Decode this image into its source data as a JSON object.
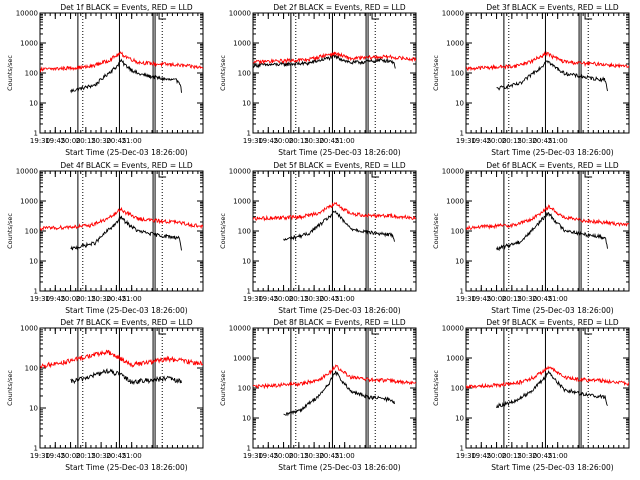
{
  "figure": {
    "background": "#ffffff",
    "axis_color": "#000000",
    "events_color": "#000000",
    "lld_color": "#ff0000"
  },
  "chart_data": [
    {
      "type": "line",
      "title": "Det 1f BLACK = Events, RED = LLD",
      "xlabel": "Start Time (25-Dec-03 18:26:00)",
      "ylabel": "Counts/sec",
      "yscale": "log",
      "ylim": [
        1,
        10000
      ],
      "ytick_values": [
        1,
        10,
        100,
        1000,
        10000
      ],
      "ytick_labels": [
        "1",
        "10",
        "100",
        "1000",
        "10000"
      ],
      "xlim": [
        18.5,
        21.167
      ],
      "xtick_values": [
        18.5,
        18.75,
        19.0,
        19.25,
        19.5,
        19.75,
        20.0
      ],
      "xtick_labels": [
        "19:30",
        "19:45",
        "20:00",
        "20:15",
        "20:30",
        "20:45",
        "21:00"
      ],
      "dotted_vlines": [
        19.2,
        20.5
      ],
      "solid_vlines": [
        19.12,
        19.8,
        20.35
      ],
      "series": [
        {
          "name": "Events",
          "color": "#000000",
          "x": [
            19.0,
            19.4,
            19.62,
            19.75,
            19.82,
            19.9,
            20.1,
            20.4,
            20.6,
            20.78,
            20.82
          ],
          "y": [
            25,
            40,
            100,
            160,
            260,
            180,
            95,
            70,
            60,
            55,
            22
          ]
        },
        {
          "name": "LLD",
          "color": "#ff0000",
          "x": [
            18.5,
            19.3,
            19.6,
            19.75,
            19.82,
            19.9,
            20.1,
            20.4,
            20.7,
            21.167
          ],
          "y": [
            130,
            160,
            250,
            380,
            450,
            360,
            230,
            200,
            190,
            150
          ]
        }
      ]
    },
    {
      "type": "line",
      "title": "Det 2f BLACK = Events, RED = LLD",
      "xlabel": "Start Time (25-Dec-03 18:26:00)",
      "ylabel": "Counts/sec",
      "yscale": "log",
      "ylim": [
        1,
        10000
      ],
      "ytick_values": [
        1,
        10,
        100,
        1000,
        10000
      ],
      "ytick_labels": [
        "1",
        "10",
        "100",
        "1000",
        "10000"
      ],
      "xlim": [
        18.5,
        21.167
      ],
      "xtick_values": [
        18.5,
        18.75,
        19.0,
        19.25,
        19.5,
        19.75,
        20.0
      ],
      "xtick_labels": [
        "19:30",
        "19:45",
        "20:00",
        "20:15",
        "20:30",
        "20:45",
        "21:00"
      ],
      "dotted_vlines": [
        19.2,
        20.5
      ],
      "solid_vlines": [
        19.12,
        19.8,
        20.35
      ],
      "series": [
        {
          "name": "Events",
          "color": "#000000",
          "x": [
            18.5,
            19.4,
            19.75,
            19.85,
            20.1,
            20.4,
            20.6,
            20.78,
            20.83
          ],
          "y": [
            180,
            210,
            320,
            350,
            220,
            240,
            270,
            250,
            160
          ]
        },
        {
          "name": "LLD",
          "color": "#ff0000",
          "x": [
            18.5,
            19.4,
            19.75,
            19.85,
            20.1,
            20.4,
            20.7,
            21.167
          ],
          "y": [
            230,
            280,
            420,
            450,
            300,
            330,
            350,
            280
          ]
        }
      ]
    },
    {
      "type": "line",
      "title": "Det 3f BLACK = Events, RED = LLD",
      "xlabel": "Start Time (25-Dec-03 18:26:00)",
      "ylabel": "Counts/sec",
      "yscale": "log",
      "ylim": [
        1,
        10000
      ],
      "ytick_values": [
        1,
        10,
        100,
        1000,
        10000
      ],
      "ytick_labels": [
        "1",
        "10",
        "100",
        "1000",
        "10000"
      ],
      "xlim": [
        18.5,
        21.167
      ],
      "xtick_values": [
        18.5,
        18.75,
        19.0,
        19.25,
        19.5,
        19.75,
        20.0
      ],
      "xtick_labels": [
        "19:30",
        "19:45",
        "20:00",
        "20:15",
        "20:30",
        "20:45",
        "21:00"
      ],
      "dotted_vlines": [
        19.2,
        20.5
      ],
      "solid_vlines": [
        19.12,
        19.8,
        20.35
      ],
      "series": [
        {
          "name": "Events",
          "color": "#000000",
          "x": [
            19.0,
            19.4,
            19.62,
            19.75,
            19.82,
            19.9,
            20.1,
            20.4,
            20.6,
            20.78,
            20.82
          ],
          "y": [
            30,
            45,
            110,
            170,
            280,
            190,
            100,
            75,
            65,
            60,
            25
          ]
        },
        {
          "name": "LLD",
          "color": "#ff0000",
          "x": [
            18.5,
            19.3,
            19.6,
            19.75,
            19.82,
            19.9,
            20.1,
            20.4,
            20.7,
            21.167
          ],
          "y": [
            140,
            170,
            260,
            390,
            460,
            370,
            240,
            210,
            200,
            160
          ]
        }
      ]
    },
    {
      "type": "line",
      "title": "Det 4f BLACK = Events, RED = LLD",
      "xlabel": "Start Time (25-Dec-03 18:26:00)",
      "ylabel": "Counts/sec",
      "yscale": "log",
      "ylim": [
        1,
        10000
      ],
      "ytick_values": [
        1,
        10,
        100,
        1000,
        10000
      ],
      "ytick_labels": [
        "1",
        "10",
        "100",
        "1000",
        "10000"
      ],
      "xlim": [
        18.5,
        21.167
      ],
      "xtick_values": [
        18.5,
        18.75,
        19.0,
        19.25,
        19.5,
        19.75,
        20.0
      ],
      "xtick_labels": [
        "19:30",
        "19:45",
        "20:00",
        "20:15",
        "20:30",
        "20:45",
        "21:00"
      ],
      "dotted_vlines": [
        19.2,
        20.5
      ],
      "solid_vlines": [
        19.12,
        19.8,
        20.35
      ],
      "series": [
        {
          "name": "Events",
          "color": "#000000",
          "x": [
            19.0,
            19.4,
            19.62,
            19.75,
            19.82,
            19.9,
            20.1,
            20.4,
            20.6,
            20.78,
            20.82
          ],
          "y": [
            25,
            40,
            110,
            180,
            300,
            200,
            100,
            75,
            65,
            60,
            22
          ]
        },
        {
          "name": "LLD",
          "color": "#ff0000",
          "x": [
            18.5,
            19.3,
            19.6,
            19.75,
            19.82,
            19.9,
            20.1,
            20.4,
            20.7,
            21.167
          ],
          "y": [
            120,
            150,
            250,
            400,
            550,
            420,
            260,
            220,
            200,
            140
          ]
        }
      ]
    },
    {
      "type": "line",
      "title": "Det 5f BLACK = Events, RED = LLD",
      "xlabel": "Start Time (25-Dec-03 18:26:00)",
      "ylabel": "Counts/sec",
      "yscale": "log",
      "ylim": [
        1,
        10000
      ],
      "ytick_values": [
        1,
        10,
        100,
        1000,
        10000
      ],
      "ytick_labels": [
        "1",
        "10",
        "100",
        "1000",
        "10000"
      ],
      "xlim": [
        18.5,
        21.167
      ],
      "xtick_values": [
        18.5,
        18.75,
        19.0,
        19.25,
        19.5,
        19.75,
        20.0
      ],
      "xtick_labels": [
        "19:30",
        "19:45",
        "20:00",
        "20:15",
        "20:30",
        "20:45",
        "21:00"
      ],
      "dotted_vlines": [
        19.2,
        20.5
      ],
      "solid_vlines": [
        19.12,
        19.8,
        20.35
      ],
      "series": [
        {
          "name": "Events",
          "color": "#000000",
          "x": [
            19.0,
            19.4,
            19.62,
            19.75,
            19.85,
            19.95,
            20.1,
            20.4,
            20.6,
            20.78,
            20.82
          ],
          "y": [
            50,
            80,
            180,
            300,
            450,
            250,
            120,
            90,
            80,
            75,
            45
          ]
        },
        {
          "name": "LLD",
          "color": "#ff0000",
          "x": [
            18.5,
            19.3,
            19.6,
            19.75,
            19.85,
            19.95,
            20.1,
            20.4,
            20.7,
            21.167
          ],
          "y": [
            260,
            300,
            420,
            650,
            800,
            600,
            380,
            330,
            330,
            270
          ]
        }
      ]
    },
    {
      "type": "line",
      "title": "Det 6f BLACK = Events, RED = LLD",
      "xlabel": "Start Time (25-Dec-03 18:26:00)",
      "ylabel": "Counts/sec",
      "yscale": "log",
      "ylim": [
        1,
        10000
      ],
      "ytick_values": [
        1,
        10,
        100,
        1000,
        10000
      ],
      "ytick_labels": [
        "1",
        "10",
        "100",
        "1000",
        "10000"
      ],
      "xlim": [
        18.5,
        21.167
      ],
      "xtick_values": [
        18.5,
        18.75,
        19.0,
        19.25,
        19.5,
        19.75,
        20.0
      ],
      "xtick_labels": [
        "19:30",
        "19:45",
        "20:00",
        "20:15",
        "20:30",
        "20:45",
        "21:00"
      ],
      "dotted_vlines": [
        19.2,
        20.5
      ],
      "solid_vlines": [
        19.12,
        19.8,
        20.35
      ],
      "series": [
        {
          "name": "Events",
          "color": "#000000",
          "x": [
            19.0,
            19.4,
            19.62,
            19.75,
            19.85,
            19.95,
            20.1,
            20.4,
            20.6,
            20.78,
            20.82
          ],
          "y": [
            25,
            45,
            130,
            250,
            400,
            230,
            110,
            80,
            70,
            60,
            25
          ]
        },
        {
          "name": "LLD",
          "color": "#ff0000",
          "x": [
            18.5,
            19.3,
            19.6,
            19.75,
            19.85,
            19.95,
            20.1,
            20.4,
            20.7,
            21.167
          ],
          "y": [
            130,
            160,
            260,
            450,
            650,
            480,
            280,
            230,
            200,
            160
          ]
        }
      ]
    },
    {
      "type": "line",
      "title": "Det 7f BLACK = Events, RED = LLD",
      "xlabel": "Start Time (25-Dec-03 18:26:00)",
      "ylabel": "Counts/sec",
      "yscale": "log",
      "ylim": [
        1,
        1000
      ],
      "ytick_values": [
        1,
        10,
        100,
        1000
      ],
      "ytick_labels": [
        "1",
        "10",
        "100",
        "1000"
      ],
      "xlim": [
        18.5,
        21.167
      ],
      "xtick_values": [
        18.5,
        18.75,
        19.0,
        19.25,
        19.5,
        19.75,
        20.0
      ],
      "xtick_labels": [
        "19:30",
        "19:45",
        "20:00",
        "20:15",
        "20:30",
        "20:45",
        "21:00"
      ],
      "dotted_vlines": [
        19.2,
        20.5
      ],
      "solid_vlines": [
        19.12,
        19.8,
        20.35
      ],
      "series": [
        {
          "name": "Events",
          "color": "#000000",
          "x": [
            19.0,
            19.3,
            19.6,
            19.8,
            20.0,
            20.3,
            20.6,
            20.82
          ],
          "y": [
            45,
            60,
            85,
            70,
            45,
            50,
            55,
            45
          ]
        },
        {
          "name": "LLD",
          "color": "#ff0000",
          "x": [
            18.5,
            19.0,
            19.3,
            19.6,
            19.8,
            20.0,
            20.3,
            20.6,
            21.167
          ],
          "y": [
            110,
            150,
            200,
            250,
            180,
            120,
            140,
            170,
            130
          ]
        }
      ]
    },
    {
      "type": "line",
      "title": "Det 8f BLACK = Events, RED = LLD",
      "xlabel": "Start Time (25-Dec-03 18:26:00)",
      "ylabel": "Counts/sec",
      "yscale": "log",
      "ylim": [
        1,
        10000
      ],
      "ytick_values": [
        1,
        10,
        100,
        1000,
        10000
      ],
      "ytick_labels": [
        "1",
        "10",
        "100",
        "1000",
        "10000"
      ],
      "xlim": [
        18.5,
        21.167
      ],
      "xtick_values": [
        18.5,
        18.75,
        19.0,
        19.25,
        19.5,
        19.75,
        20.0
      ],
      "xtick_labels": [
        "19:30",
        "19:45",
        "20:00",
        "20:15",
        "20:30",
        "20:45",
        "21:00"
      ],
      "dotted_vlines": [
        19.2,
        20.5
      ],
      "solid_vlines": [
        19.12,
        19.8,
        20.35
      ],
      "series": [
        {
          "name": "Events",
          "color": "#000000",
          "x": [
            19.0,
            19.3,
            19.6,
            19.75,
            19.85,
            19.95,
            20.1,
            20.4,
            20.6,
            20.78,
            20.82
          ],
          "y": [
            12,
            20,
            60,
            150,
            350,
            180,
            75,
            50,
            45,
            40,
            30
          ]
        },
        {
          "name": "LLD",
          "color": "#ff0000",
          "x": [
            18.5,
            19.3,
            19.6,
            19.75,
            19.85,
            19.95,
            20.1,
            20.4,
            20.7,
            21.167
          ],
          "y": [
            110,
            140,
            200,
            320,
            550,
            380,
            230,
            190,
            180,
            140
          ]
        }
      ]
    },
    {
      "type": "line",
      "title": "Det 9f BLACK = Events, RED = LLD",
      "xlabel": "Start Time (25-Dec-03 18:26:00)",
      "ylabel": "Counts/sec",
      "yscale": "log",
      "ylim": [
        1,
        10000
      ],
      "ytick_values": [
        1,
        10,
        100,
        1000,
        10000
      ],
      "ytick_labels": [
        "1",
        "10",
        "100",
        "1000",
        "10000"
      ],
      "xlim": [
        18.5,
        21.167
      ],
      "xtick_values": [
        18.5,
        18.75,
        19.0,
        19.25,
        19.5,
        19.75,
        20.0
      ],
      "xtick_labels": [
        "19:30",
        "19:45",
        "20:00",
        "20:15",
        "20:30",
        "20:45",
        "21:00"
      ],
      "dotted_vlines": [
        19.2,
        20.5
      ],
      "solid_vlines": [
        19.12,
        19.8,
        20.35
      ],
      "series": [
        {
          "name": "Events",
          "color": "#000000",
          "x": [
            19.0,
            19.3,
            19.6,
            19.75,
            19.85,
            19.95,
            20.1,
            20.4,
            20.6,
            20.78,
            20.82
          ],
          "y": [
            25,
            35,
            90,
            180,
            350,
            200,
            90,
            65,
            55,
            50,
            25
          ]
        },
        {
          "name": "LLD",
          "color": "#ff0000",
          "x": [
            18.5,
            19.3,
            19.6,
            19.75,
            19.85,
            19.95,
            20.1,
            20.4,
            20.7,
            21.167
          ],
          "y": [
            110,
            140,
            220,
            350,
            500,
            380,
            230,
            190,
            180,
            140
          ]
        }
      ]
    }
  ]
}
